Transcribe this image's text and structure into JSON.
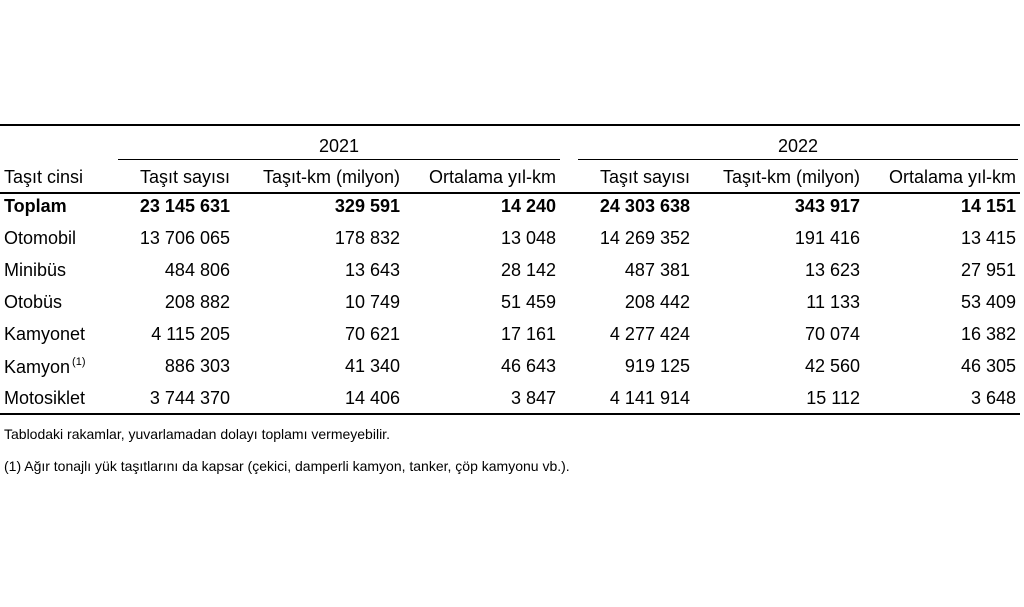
{
  "years": [
    "2021",
    "2022"
  ],
  "header": {
    "vehicle_type": "Taşıt cinsi",
    "columns": [
      "Taşıt sayısı",
      "Taşıt-km (milyon)",
      "Ortalama yıl-km",
      "Taşıt sayısı",
      "Taşıt-km (milyon)",
      "Ortalama yıl-km"
    ]
  },
  "rows": [
    {
      "label": "Toplam",
      "sup": "",
      "values": [
        "23 145 631",
        "329 591",
        "14 240",
        "24 303 638",
        "343 917",
        "14 151"
      ]
    },
    {
      "label": "Otomobil",
      "sup": "",
      "values": [
        "13 706 065",
        "178 832",
        "13 048",
        "14 269 352",
        "191 416",
        "13 415"
      ]
    },
    {
      "label": "Minibüs",
      "sup": "",
      "values": [
        "484 806",
        "13 643",
        "28 142",
        "487 381",
        "13 623",
        "27 951"
      ]
    },
    {
      "label": "Otobüs",
      "sup": "",
      "values": [
        "208 882",
        "10 749",
        "51 459",
        "208 442",
        "11 133",
        "53 409"
      ]
    },
    {
      "label": "Kamyonet",
      "sup": "",
      "values": [
        "4 115 205",
        "70 621",
        "17 161",
        "4 277 424",
        "70 074",
        "16 382"
      ]
    },
    {
      "label": "Kamyon",
      "sup": "(1)",
      "values": [
        "886 303",
        "41 340",
        "46 643",
        "919 125",
        "42 560",
        "46 305"
      ]
    },
    {
      "label": "Motosiklet",
      "sup": "",
      "values": [
        "3 744 370",
        "14 406",
        "3 847",
        "4 141 914",
        "15 112",
        "3 648"
      ]
    }
  ],
  "notes": [
    "Tablodaki rakamlar, yuvarlamadan dolayı toplamı vermeyebilir.",
    "(1) Ağır tonajlı yük  taşıtlarını da kapsar (çekici, damperli kamyon, tanker, çöp kamyonu vb.)."
  ]
}
